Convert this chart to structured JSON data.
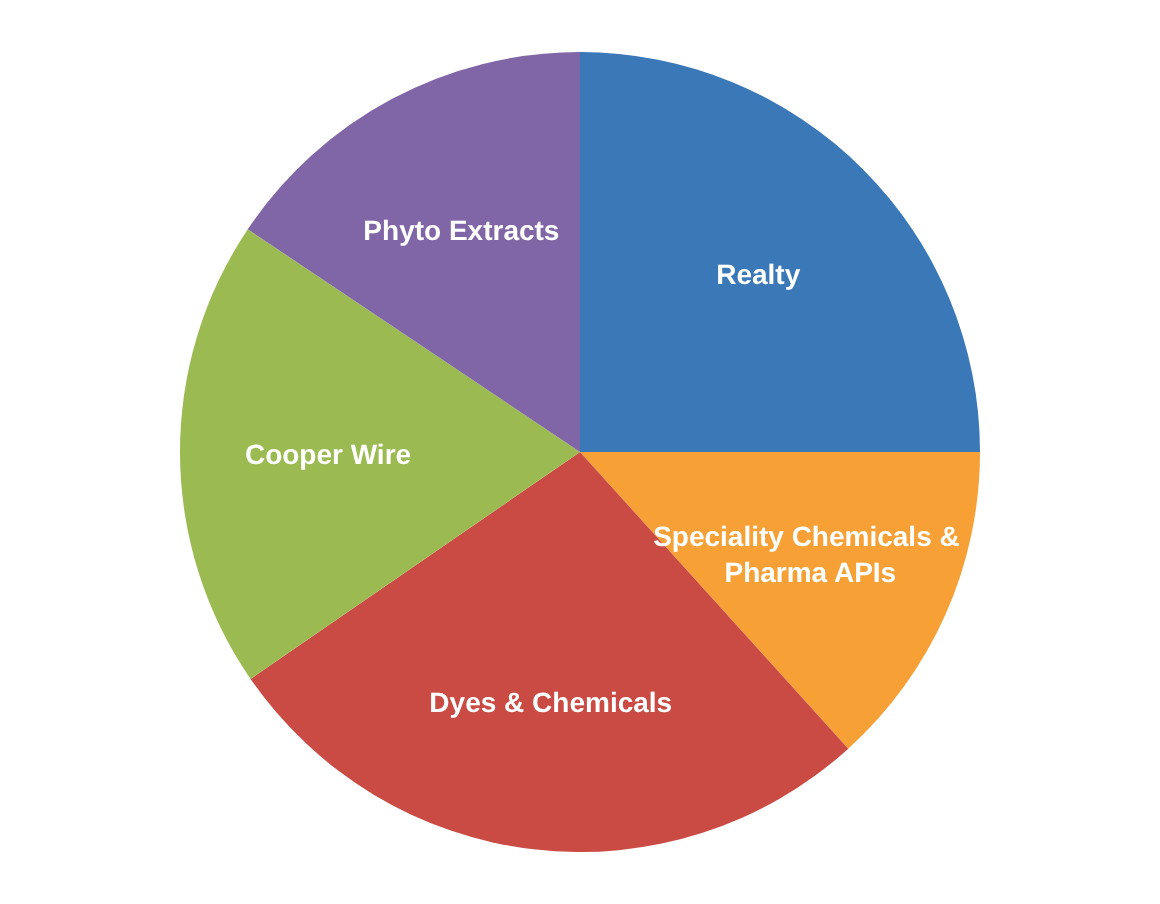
{
  "chart_data": {
    "type": "pie",
    "categories": [
      "Realty",
      "Speciality Chemicals & Pharma APIs",
      "Dyes & Chemicals",
      "Cooper Wire",
      "Phyto Extracts"
    ],
    "values": [
      25,
      13.3,
      27.1,
      19,
      15.6
    ],
    "colors": [
      "#3b78b8",
      "#f7a035",
      "#c94b43",
      "#9bbb52",
      "#8066a6"
    ]
  }
}
